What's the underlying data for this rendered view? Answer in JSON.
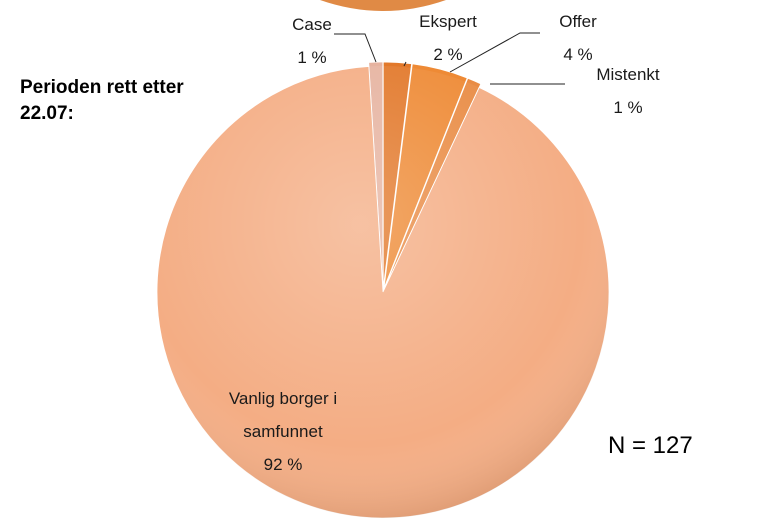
{
  "chart_data": {
    "type": "pie",
    "categories": [
      "Case",
      "Ekspert",
      "Offer",
      "Mistenkt",
      "Vanlig borger i samfunnet"
    ],
    "values": [
      1,
      2,
      4,
      1,
      92
    ],
    "value_labels": [
      "1 %",
      "2 %",
      "4 %",
      "1 %",
      "92 %"
    ],
    "colors": [
      "#e6b3a0",
      "#e2782a",
      "#ee8a35",
      "#e98c45",
      "#f4ad84"
    ],
    "annotations": [
      "Perioden rett etter 22.07:",
      "N = 127"
    ]
  }
}
